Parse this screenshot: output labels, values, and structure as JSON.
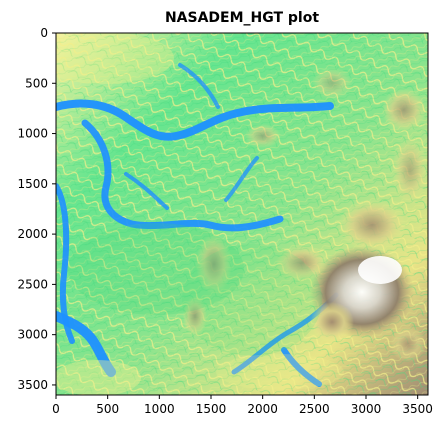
{
  "chart_data": {
    "type": "heatmap",
    "title": "NASADEM_HGT plot",
    "xlabel": "",
    "ylabel": "",
    "xlim": [
      0,
      3600
    ],
    "ylim": [
      3600,
      0
    ],
    "x_ticks": [
      0,
      500,
      1000,
      1500,
      2000,
      2500,
      3000,
      3500
    ],
    "y_ticks": [
      0,
      500,
      1000,
      1500,
      2000,
      2500,
      3000,
      3500
    ],
    "colormap": "terrain",
    "colorbar": false,
    "grid": false,
    "colors": {
      "water": "#1e90ff",
      "lowland": "#41e07a",
      "midland": "#f5f08c",
      "highland": "#a08a6e",
      "peak": "#ffffff"
    }
  }
}
